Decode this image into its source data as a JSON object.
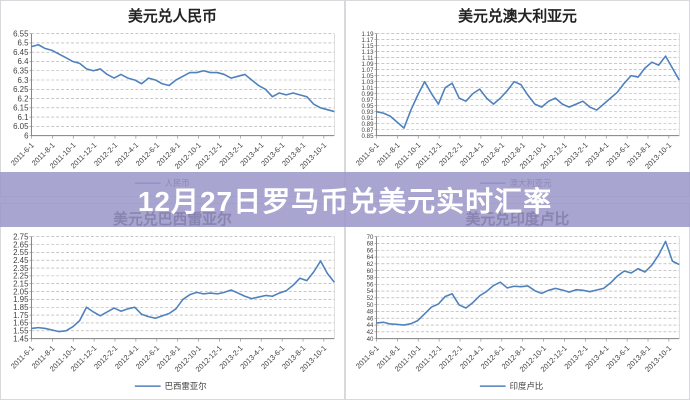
{
  "banner": {
    "text": "12月27日罗马币兑美元实时汇率",
    "bg_rgba": "rgba(154,149,201,0.85)",
    "text_color": "#ffffff"
  },
  "colors": {
    "line": "#4f81bd",
    "grid": "#a6a6a6",
    "axis": "#808080",
    "tick_text": "#3f3f3f",
    "title_text": "#222222",
    "panel_border": "#d9d9dd"
  },
  "x_labels": [
    "2011-6-1",
    "2011-8-1",
    "2011-10-1",
    "2011-12-1",
    "2012-2-1",
    "2012-4-1",
    "2012-6-1",
    "2012-8-1",
    "2012-10-1",
    "2012-12-1",
    "2013-2-1",
    "2013-4-1",
    "2013-6-1",
    "2013-8-1",
    "2013-10-1"
  ],
  "chart_data": [
    {
      "type": "line",
      "title": "美元兑人民币",
      "legend": "人民币",
      "ymin": 6,
      "ymax": 6.55,
      "y_labels": [
        "6.55",
        "6.5",
        "6.45",
        "6.4",
        "6.35",
        "6.3",
        "6.25",
        "6.2",
        "6.15",
        "6.1",
        "6.05",
        "6"
      ],
      "x_range_months": 29,
      "values": [
        6.48,
        6.49,
        6.47,
        6.46,
        6.44,
        6.42,
        6.4,
        6.39,
        6.36,
        6.35,
        6.36,
        6.33,
        6.31,
        6.33,
        6.31,
        6.3,
        6.28,
        6.31,
        6.3,
        6.28,
        6.27,
        6.3,
        6.32,
        6.34,
        6.34,
        6.35,
        6.34,
        6.34,
        6.33,
        6.31,
        6.32,
        6.33,
        6.3,
        6.27,
        6.25,
        6.21,
        6.23,
        6.22,
        6.23,
        6.22,
        6.21,
        6.17,
        6.15,
        6.14,
        6.13
      ]
    },
    {
      "type": "line",
      "title": "美元兑澳大利亚元",
      "legend": "澳大利亚元",
      "ymin": 0.85,
      "ymax": 1.19,
      "y_labels": [
        "1.19",
        "1.17",
        "1.15",
        "1.13",
        "1.11",
        "1.09",
        "1.07",
        "1.05",
        "1.03",
        "1.01",
        "0.99",
        "0.97",
        "0.95",
        "0.93",
        "0.91",
        "0.89",
        "0.87",
        "0.85"
      ],
      "x_range_months": 29,
      "values": [
        0.93,
        0.925,
        0.915,
        0.895,
        0.875,
        0.935,
        0.985,
        1.03,
        0.99,
        0.955,
        1.01,
        1.025,
        0.975,
        0.965,
        0.99,
        1.005,
        0.975,
        0.955,
        0.975,
        1.0,
        1.03,
        1.02,
        0.985,
        0.955,
        0.945,
        0.965,
        0.975,
        0.955,
        0.945,
        0.955,
        0.965,
        0.945,
        0.935,
        0.955,
        0.975,
        0.995,
        1.025,
        1.05,
        1.045,
        1.075,
        1.095,
        1.085,
        1.115,
        1.075,
        1.035
      ]
    },
    {
      "type": "line",
      "title": "美元兑巴西雷亚尔",
      "legend": "巴西雷亚尔",
      "ymin": 1.45,
      "ymax": 2.75,
      "y_labels": [
        "2.75",
        "2.65",
        "2.55",
        "2.45",
        "2.35",
        "2.25",
        "2.15",
        "2.05",
        "1.95",
        "1.85",
        "1.75",
        "1.65",
        "1.55",
        "1.45"
      ],
      "x_range_months": 29,
      "values": [
        1.58,
        1.59,
        1.58,
        1.56,
        1.54,
        1.55,
        1.6,
        1.68,
        1.85,
        1.79,
        1.74,
        1.79,
        1.84,
        1.8,
        1.83,
        1.85,
        1.76,
        1.73,
        1.71,
        1.74,
        1.77,
        1.83,
        1.95,
        2.01,
        2.04,
        2.02,
        2.03,
        2.02,
        2.04,
        2.07,
        2.03,
        1.99,
        1.96,
        1.98,
        2.0,
        1.99,
        2.03,
        2.06,
        2.13,
        2.22,
        2.19,
        2.3,
        2.44,
        2.28,
        2.17
      ]
    },
    {
      "type": "line",
      "title": "美元兑印度卢比",
      "legend": "印度卢比",
      "ymin": 40,
      "ymax": 70,
      "y_labels": [
        "70",
        "68",
        "66",
        "64",
        "62",
        "60",
        "58",
        "56",
        "54",
        "52",
        "50",
        "48",
        "46",
        "44",
        "42",
        "40"
      ],
      "x_range_months": 29,
      "values": [
        44.6,
        44.8,
        44.3,
        44.2,
        44.0,
        44.4,
        45.3,
        47.3,
        49.3,
        50.2,
        52.4,
        53.2,
        49.9,
        49.0,
        50.6,
        52.6,
        53.9,
        55.6,
        56.6,
        54.9,
        55.4,
        55.3,
        55.5,
        54.1,
        53.3,
        54.2,
        54.8,
        54.3,
        53.7,
        54.4,
        54.2,
        53.8,
        54.3,
        54.8,
        56.4,
        58.4,
        59.9,
        59.3,
        60.6,
        59.6,
        61.6,
        64.6,
        68.6,
        62.8,
        61.8
      ]
    }
  ]
}
